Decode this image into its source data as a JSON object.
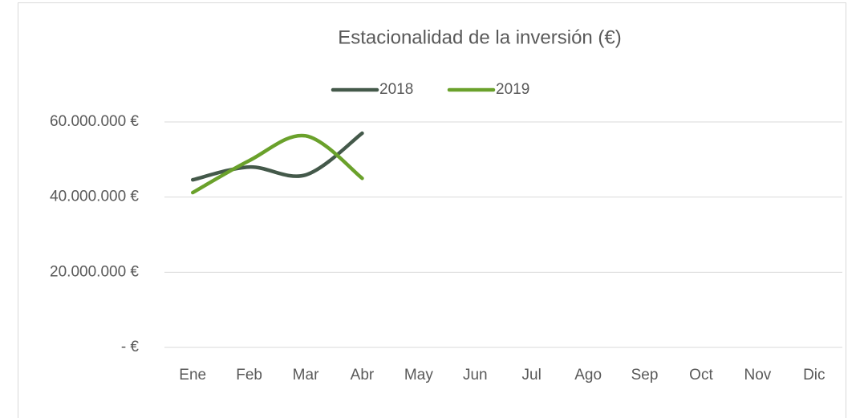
{
  "chart_data": {
    "type": "line",
    "title": "Estacionalidad de la inversión (€)",
    "categories": [
      "Ene",
      "Feb",
      "Mar",
      "Abr",
      "May",
      "Jun",
      "Jul",
      "Ago",
      "Sep",
      "Oct",
      "Nov",
      "Dic"
    ],
    "series": [
      {
        "name": "2018",
        "color": "#44594a",
        "values": [
          44600000,
          48000000,
          45900000,
          57000000,
          null,
          null,
          null,
          null,
          null,
          null,
          null,
          null
        ]
      },
      {
        "name": "2019",
        "color": "#6aa12b",
        "values": [
          41200000,
          49700000,
          56300000,
          45000000,
          null,
          null,
          null,
          null,
          null,
          null,
          null,
          null
        ]
      }
    ],
    "ylim": [
      0,
      60000000
    ],
    "yticks": [
      {
        "value": 0,
        "label": "-   €"
      },
      {
        "value": 20000000,
        "label": "20.000.000 €"
      },
      {
        "value": 40000000,
        "label": "40.000.000 €"
      },
      {
        "value": 60000000,
        "label": "60.000.000 €"
      }
    ],
    "grid": true,
    "legend": "top",
    "smooth": true
  }
}
